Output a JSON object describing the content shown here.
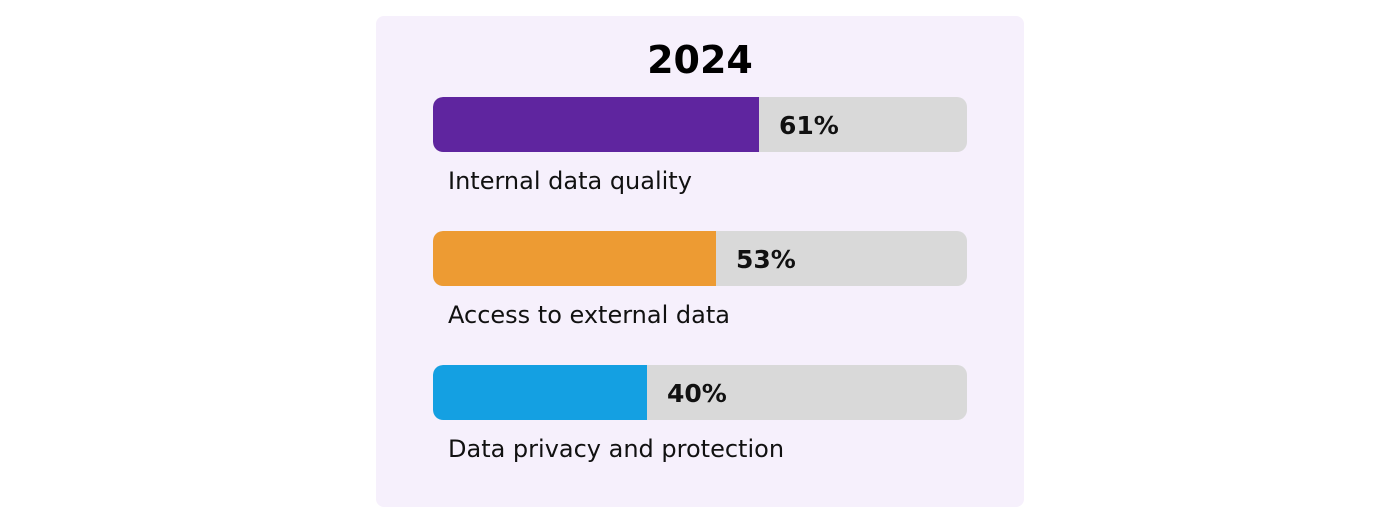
{
  "chart_data": {
    "type": "bar",
    "orientation": "horizontal",
    "title": "2024",
    "categories": [
      "Internal data quality",
      "Access to external data",
      "Data privacy and protection"
    ],
    "values": [
      61,
      53,
      40
    ],
    "value_labels": [
      "61%",
      "53%",
      "40%"
    ],
    "unit": "%",
    "xlim": [
      0,
      100
    ],
    "colors": [
      "#5F259F",
      "#ED9B33",
      "#14A0E2"
    ],
    "track_color": "#D9D9D9",
    "background_color": "#F6F0FC",
    "grid": false,
    "legend": "none"
  }
}
